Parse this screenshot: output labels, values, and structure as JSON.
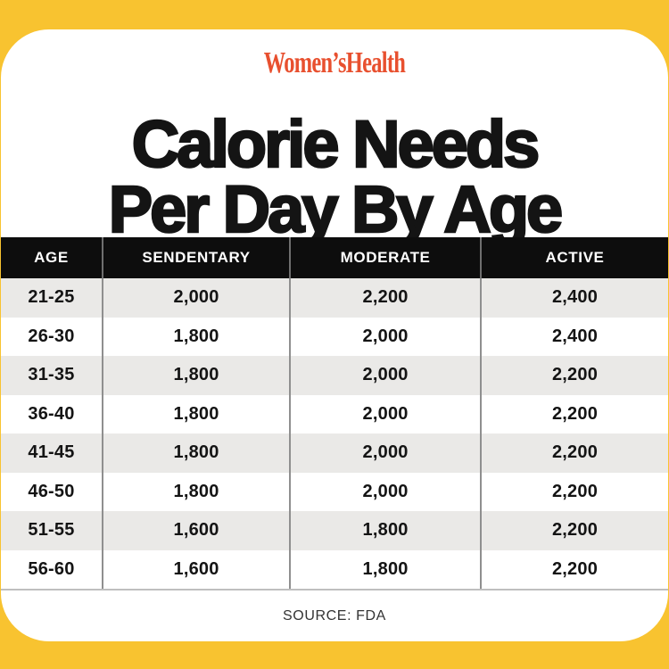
{
  "colors": {
    "yellow": "#F8C330",
    "brand": "#E8502F",
    "header_bg": "#0D0D0D",
    "stripe": "#EAE9E7",
    "ink": "#141414"
  },
  "brand": {
    "logo_text": "Women’sHealth"
  },
  "title": {
    "line1": "Calorie Needs",
    "line2": "Per Day By Age"
  },
  "chart_data": {
    "type": "table",
    "title": "Calorie Needs Per Day By Age",
    "columns": [
      "AGE",
      "SENDENTARY",
      "MODERATE",
      "ACTIVE"
    ],
    "rows": [
      [
        "21-25",
        "2,000",
        "2,200",
        "2,400"
      ],
      [
        "26-30",
        "1,800",
        "2,000",
        "2,400"
      ],
      [
        "31-35",
        "1,800",
        "2,000",
        "2,200"
      ],
      [
        "36-40",
        "1,800",
        "2,000",
        "2,200"
      ],
      [
        "41-45",
        "1,800",
        "2,000",
        "2,200"
      ],
      [
        "46-50",
        "1,800",
        "2,000",
        "2,200"
      ],
      [
        "51-55",
        "1,600",
        "1,800",
        "2,200"
      ],
      [
        "56-60",
        "1,600",
        "1,800",
        "2,200"
      ]
    ],
    "source": "SOURCE: FDA"
  },
  "footer": {
    "source_text": "SOURCE: FDA"
  }
}
